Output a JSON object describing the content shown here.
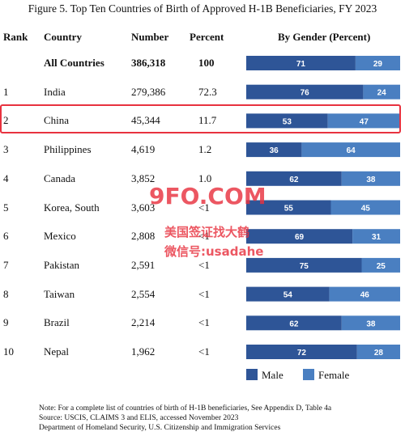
{
  "chart_data": {
    "type": "table",
    "title": "Figure 5. Top Ten Countries of Birth of Approved H-1B Beneficiaries, FY 2023",
    "columns": [
      "Rank",
      "Country",
      "Number",
      "Percent",
      "By Gender (Percent)"
    ],
    "rows": [
      {
        "rank": "",
        "country": "All Countries",
        "number": "386,318",
        "percent": "100",
        "male": 71,
        "female": 29
      },
      {
        "rank": "1",
        "country": "India",
        "number": "279,386",
        "percent": "72.3",
        "male": 76,
        "female": 24
      },
      {
        "rank": "2",
        "country": "China",
        "number": "45,344",
        "percent": "11.7",
        "male": 53,
        "female": 47
      },
      {
        "rank": "3",
        "country": "Philippines",
        "number": "4,619",
        "percent": "1.2",
        "male": 36,
        "female": 64
      },
      {
        "rank": "4",
        "country": "Canada",
        "number": "3,852",
        "percent": "1.0",
        "male": 62,
        "female": 38
      },
      {
        "rank": "5",
        "country": "Korea, South",
        "number": "3,603",
        "percent": "<1",
        "male": 55,
        "female": 45
      },
      {
        "rank": "6",
        "country": "Mexico",
        "number": "2,808",
        "percent": "<1",
        "male": 69,
        "female": 31
      },
      {
        "rank": "7",
        "country": "Pakistan",
        "number": "2,591",
        "percent": "<1",
        "male": 75,
        "female": 25
      },
      {
        "rank": "8",
        "country": "Taiwan",
        "number": "2,554",
        "percent": "<1",
        "male": 54,
        "female": 46
      },
      {
        "rank": "9",
        "country": "Brazil",
        "number": "2,214",
        "percent": "<1",
        "male": 62,
        "female": 38
      },
      {
        "rank": "10",
        "country": "Nepal",
        "number": "1,962",
        "percent": "<1",
        "male": 72,
        "female": 28
      }
    ],
    "series": [
      {
        "name": "Male",
        "color": "#2e5597"
      },
      {
        "name": "Female",
        "color": "#4a7fc1"
      }
    ],
    "highlighted_row": "China",
    "legend_position": "bottom-right"
  },
  "watermark": {
    "line1": "9FO.COM",
    "line2": "美国签证找大鹤",
    "line3": "微信号:usadahe"
  },
  "notes": [
    "Note: For a complete list of countries of birth of H-1B beneficiaries, See Appendix D, Table 4a",
    "Source: USCIS, CLAIMS 3 and ELIS, accessed November 2023",
    "Department of Homeland Security, U.S. Citizenship and Immigration Services"
  ]
}
